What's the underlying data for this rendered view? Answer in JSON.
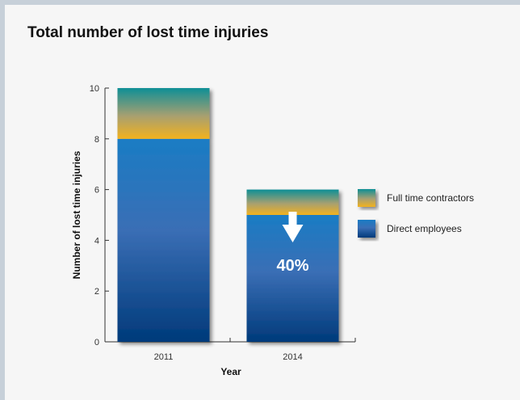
{
  "chart_data": {
    "type": "bar",
    "stacked": true,
    "title": "Total number of lost time injuries",
    "xlabel": "Year",
    "ylabel": "Number of lost time injuries",
    "categories": [
      "2011",
      "2014"
    ],
    "series": [
      {
        "name": "Direct employees",
        "values": [
          8,
          5
        ]
      },
      {
        "name": "Full time contractors",
        "values": [
          2,
          1
        ]
      }
    ],
    "ylim": [
      0,
      10
    ],
    "yticks": [
      "0",
      "2",
      "4",
      "6",
      "8",
      "10"
    ],
    "grid": false,
    "legend": "right",
    "annotation": {
      "text": "40%",
      "category": "2014",
      "arrow": "down"
    },
    "colors": {
      "direct_top": "#1a7cc4",
      "direct_bottom": "#003a7a",
      "contractor_top": "#0e8f96",
      "contractor_bottom": "#f2b21e"
    }
  }
}
